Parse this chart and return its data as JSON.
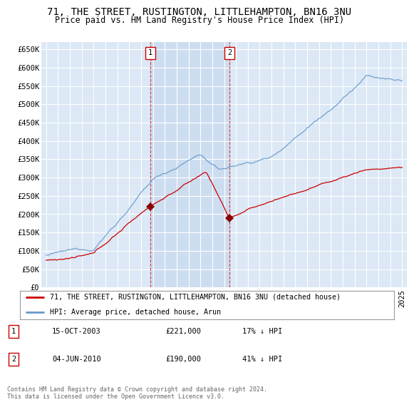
{
  "title": "71, THE STREET, RUSTINGTON, LITTLEHAMPTON, BN16 3NU",
  "subtitle": "Price paid vs. HM Land Registry's House Price Index (HPI)",
  "ylim": [
    0,
    670000
  ],
  "yticks": [
    0,
    50000,
    100000,
    150000,
    200000,
    250000,
    300000,
    350000,
    400000,
    450000,
    500000,
    550000,
    600000,
    650000
  ],
  "ytick_labels": [
    "£0",
    "£50K",
    "£100K",
    "£150K",
    "£200K",
    "£250K",
    "£300K",
    "£350K",
    "£400K",
    "£450K",
    "£500K",
    "£550K",
    "£600K",
    "£650K"
  ],
  "background_color": "#dce8f5",
  "grid_color": "#ffffff",
  "red_color": "#cc0000",
  "blue_color": "#6699cc",
  "shade_color": "#ccddf0",
  "transaction1_x": 2003.79,
  "transaction1_price": 221000,
  "transaction2_x": 2010.43,
  "transaction2_price": 190000,
  "legend_line1": "71, THE STREET, RUSTINGTON, LITTLEHAMPTON, BN16 3NU (detached house)",
  "legend_line2": "HPI: Average price, detached house, Arun",
  "t1_date": "15-OCT-2003",
  "t2_date": "04-JUN-2010",
  "t1_hpi": "17% ↓ HPI",
  "t2_hpi": "41% ↓ HPI",
  "footer": "Contains HM Land Registry data © Crown copyright and database right 2024.\nThis data is licensed under the Open Government Licence v3.0.",
  "title_fontsize": 10,
  "subtitle_fontsize": 8.5,
  "tick_fontsize": 7.5
}
